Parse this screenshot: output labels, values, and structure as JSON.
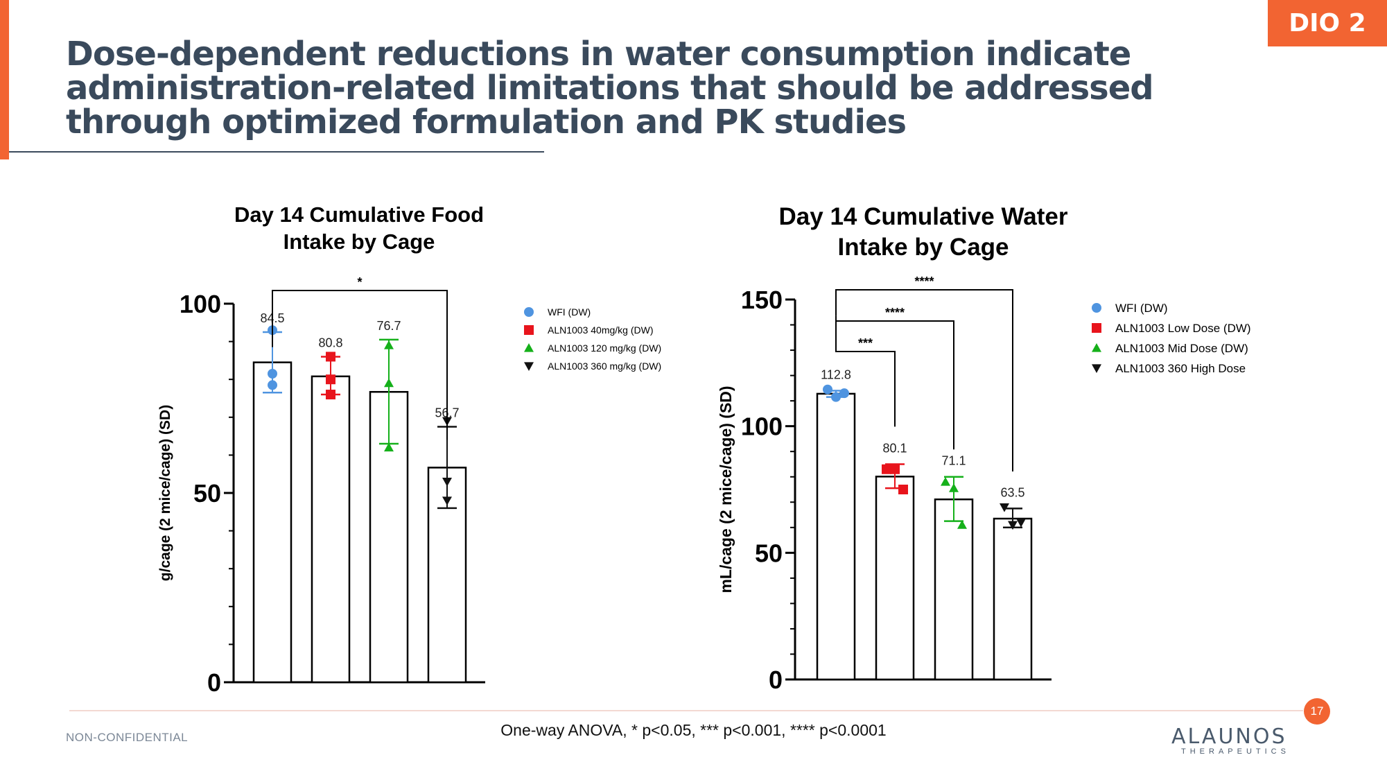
{
  "slide": {
    "tag": "DIO 2",
    "title": "Dose-dependent reductions in water consumption indicate administration-related limitations that should be addressed through optimized formulation and PK studies",
    "footnote": "One-way ANOVA, * p<0.05, *** p<0.001, **** p<0.0001",
    "page_number": "17",
    "classification": "NON-CONFIDENTIAL",
    "logo_text": "ALAUNOS",
    "logo_subtext": "THERAPEUTICS",
    "accent_color": "#f26432",
    "title_color": "#3a4a5c"
  },
  "chart_data": [
    {
      "type": "bar",
      "title_lines": [
        "Day 14 Cumulative Food",
        "Intake by Cage"
      ],
      "ylabel": "g/cage (2 mice/cage) (SD)",
      "ylim": [
        0,
        100
      ],
      "yticks": [
        0,
        50,
        100
      ],
      "categories": [
        "WFI (DW)",
        "ALN1003 40mg/kg (DW)",
        "ALN1003 120 mg/kg (DW)",
        "ALN1003 360 mg/kg (DW)"
      ],
      "values": [
        84.5,
        80.8,
        76.7,
        56.7
      ],
      "value_labels": [
        "84.5",
        "80.8",
        "76.7",
        "56.7"
      ],
      "error": [
        {
          "low": 76.5,
          "high": 92.5
        },
        {
          "low": 76.0,
          "high": 86.0
        },
        {
          "low": 63.0,
          "high": 90.5
        },
        {
          "low": 46.0,
          "high": 67.5
        }
      ],
      "points": [
        [
          93,
          81.5,
          78.5
        ],
        [
          86,
          80,
          76
        ],
        [
          89,
          79,
          62
        ],
        [
          69,
          53,
          48
        ]
      ],
      "colors": [
        "#4f94e0",
        "#e8141c",
        "#15b01a",
        "#111111"
      ],
      "markers": [
        "circle",
        "square",
        "triangle-up",
        "triangle-down"
      ],
      "significance": [
        {
          "from": 0,
          "to": 3,
          "label": "*"
        }
      ],
      "legend": [
        "WFI (DW)",
        "ALN1003 40mg/kg (DW)",
        "ALN1003 120 mg/kg (DW)",
        "ALN1003 360 mg/kg (DW)"
      ],
      "legend_position": "right"
    },
    {
      "type": "bar",
      "title_lines": [
        "Day 14 Cumulative Water",
        "Intake by Cage"
      ],
      "ylabel": "mL/cage (2 mice/cage) (SD)",
      "ylim": [
        0,
        150
      ],
      "yticks": [
        0,
        50,
        100,
        150
      ],
      "categories": [
        "WFI (DW)",
        "ALN1003 Low Dose  (DW)",
        "ALN1003 Mid Dose (DW)",
        "ALN1003 360 High Dose"
      ],
      "values": [
        112.8,
        80.1,
        71.1,
        63.5
      ],
      "value_labels": [
        "112.8",
        "80.1",
        "71.1",
        "63.5"
      ],
      "error": [
        {
          "low": 111.5,
          "high": 114.0
        },
        {
          "low": 75.5,
          "high": 85.0
        },
        {
          "low": 62.5,
          "high": 80.0
        },
        {
          "low": 60.0,
          "high": 67.5
        }
      ],
      "points": [
        [
          114.5,
          111.5,
          113
        ],
        [
          83,
          83,
          75
        ],
        [
          78,
          75.5,
          61
        ],
        [
          68,
          61,
          62
        ]
      ],
      "colors": [
        "#4f94e0",
        "#e8141c",
        "#15b01a",
        "#111111"
      ],
      "markers": [
        "circle",
        "square",
        "triangle-up",
        "triangle-down"
      ],
      "significance": [
        {
          "from": 0,
          "to": 3,
          "label": "****"
        },
        {
          "from": 0,
          "to": 2,
          "label": "****"
        },
        {
          "from": 0,
          "to": 1,
          "label": "***"
        }
      ],
      "legend": [
        "WFI (DW)",
        "ALN1003 Low Dose  (DW)",
        "ALN1003 Mid Dose (DW)",
        "ALN1003 360 High Dose"
      ],
      "legend_position": "right"
    }
  ]
}
